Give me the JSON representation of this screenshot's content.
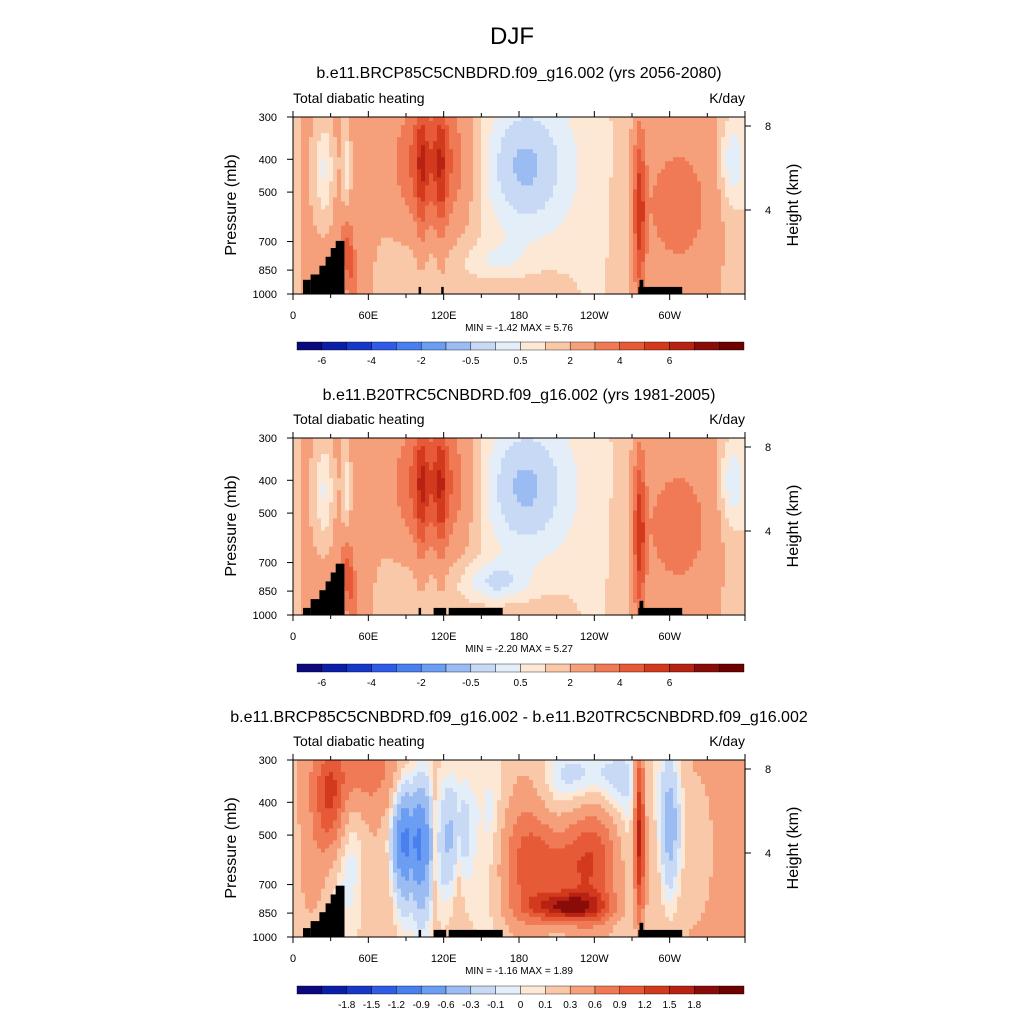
{
  "figure": {
    "title": "DJF"
  },
  "chart_data": [
    {
      "type": "heatmap",
      "title": "b.e11.BRCP85C5CNBDRD.f09_g16.002 (yrs 2056-2080)",
      "left_label": "Total diabatic heating",
      "right_label": "K/day",
      "ylabel": "Pressure (mb)",
      "ylabel_right": "Height (km)",
      "x_ticks": [
        "0",
        "60E",
        "120E",
        "180",
        "120W",
        "60W"
      ],
      "y_ticks": [
        "300",
        "400",
        "500",
        "700",
        "850",
        "1000"
      ],
      "y2_ticks": [
        "8",
        "4"
      ],
      "stats": "MIN =  -1.42  MAX =   5.76",
      "min": -1.42,
      "max": 5.76,
      "ylim": [
        1000,
        300
      ],
      "xlim": [
        0,
        360
      ],
      "colorbar": {
        "levels": [
          -7,
          -6,
          -5,
          -4,
          -3,
          -2,
          -1,
          -0.5,
          0,
          0.5,
          1,
          2,
          3,
          4,
          5,
          6,
          7
        ],
        "labels": [
          "-6",
          "-4",
          "-2",
          "-0.5",
          "0.5",
          "2",
          "4",
          "6"
        ]
      }
    },
    {
      "type": "heatmap",
      "title": "b.e11.B20TRC5CNBDRD.f09_g16.002 (yrs 1981-2005)",
      "left_label": "Total diabatic heating",
      "right_label": "K/day",
      "ylabel": "Pressure (mb)",
      "ylabel_right": "Height (km)",
      "x_ticks": [
        "0",
        "60E",
        "120E",
        "180",
        "120W",
        "60W"
      ],
      "y_ticks": [
        "300",
        "400",
        "500",
        "700",
        "850",
        "1000"
      ],
      "y2_ticks": [
        "8",
        "4"
      ],
      "stats": "MIN =  -2.20  MAX =   5.27",
      "min": -2.2,
      "max": 5.27,
      "ylim": [
        1000,
        300
      ],
      "xlim": [
        0,
        360
      ],
      "colorbar": {
        "levels": [
          -7,
          -6,
          -5,
          -4,
          -3,
          -2,
          -1,
          -0.5,
          0,
          0.5,
          1,
          2,
          3,
          4,
          5,
          6,
          7
        ],
        "labels": [
          "-6",
          "-4",
          "-2",
          "-0.5",
          "0.5",
          "2",
          "4",
          "6"
        ]
      }
    },
    {
      "type": "heatmap",
      "title": "b.e11.BRCP85C5CNBDRD.f09_g16.002 - b.e11.B20TRC5CNBDRD.f09_g16.002",
      "left_label": "Total diabatic heating",
      "right_label": "K/day",
      "ylabel": "Pressure (mb)",
      "ylabel_right": "Height (km)",
      "x_ticks": [
        "0",
        "60E",
        "120E",
        "180",
        "120W",
        "60W"
      ],
      "y_ticks": [
        "300",
        "400",
        "500",
        "700",
        "850",
        "1000"
      ],
      "y2_ticks": [
        "8",
        "4"
      ],
      "stats": "MIN =  -1.16  MAX =   1.89",
      "min": -1.16,
      "max": 1.89,
      "ylim": [
        1000,
        300
      ],
      "xlim": [
        0,
        360
      ],
      "colorbar": {
        "levels": [
          -2.1,
          -1.8,
          -1.5,
          -1.2,
          -0.9,
          -0.6,
          -0.3,
          -0.1,
          0,
          0.1,
          0.3,
          0.6,
          0.9,
          1.2,
          1.5,
          1.8,
          2.1
        ],
        "labels": [
          "-1.8",
          "-1.5",
          "-1.2",
          "-0.9",
          "-0.6",
          "-0.3",
          "-0.1",
          "0",
          "0.1",
          "0.3",
          "0.6",
          "0.9",
          "1.2",
          "1.5",
          "1.8"
        ]
      }
    }
  ],
  "palette": [
    "#0a0a7e",
    "#0b1ea8",
    "#1737c9",
    "#2f5be6",
    "#4a7ff0",
    "#6b9ef2",
    "#9bbcf2",
    "#c8d9f5",
    "#e3eef9",
    "#fde8d6",
    "#f9c8a8",
    "#f5a07a",
    "#ef7a55",
    "#e65a37",
    "#d33a1d",
    "#b82212",
    "#8a0c08",
    "#6e0000"
  ]
}
